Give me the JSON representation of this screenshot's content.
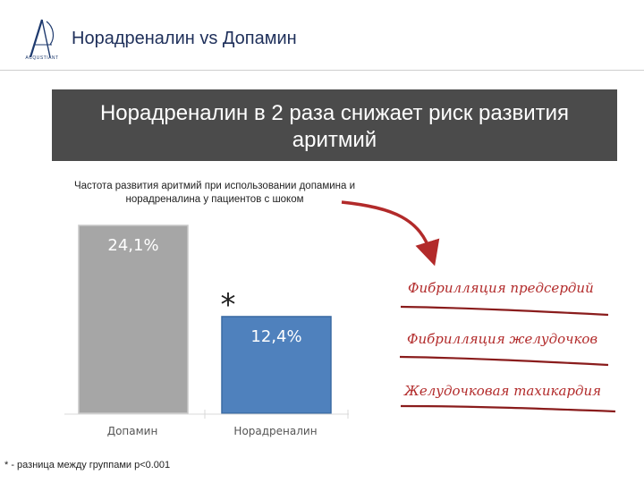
{
  "header": {
    "title": "Норадреналин vs Допамин",
    "logo_text": "ACQUSTIANT"
  },
  "banner": {
    "line1": "Норадреналин в 2 раза снижает риск развития",
    "line2": "аритмий"
  },
  "chart_data": {
    "type": "bar",
    "title_line1": "Частота развития аритмий при использовании допамина и",
    "title_line2": "норадреналина у пациентов с шоком",
    "categories": [
      "Допамин",
      "Норадреналин"
    ],
    "values": [
      24.1,
      12.4
    ],
    "value_labels": [
      "24,1%",
      "12,4%"
    ],
    "colors": [
      "#a6a6a6",
      "#4f81bd"
    ],
    "significance_marker": "*",
    "ylim": [
      0,
      24.1
    ]
  },
  "arrhythmias": [
    "Фибрилляция предсердий",
    "Фибрилляция желудочков",
    "Желудочковая тахикардия"
  ],
  "footnote": "* - разница между группами p<0.001",
  "colors": {
    "banner": "#4b4b4b",
    "accent_red": "#b22a2a",
    "title_blue": "#1e2f5a"
  }
}
